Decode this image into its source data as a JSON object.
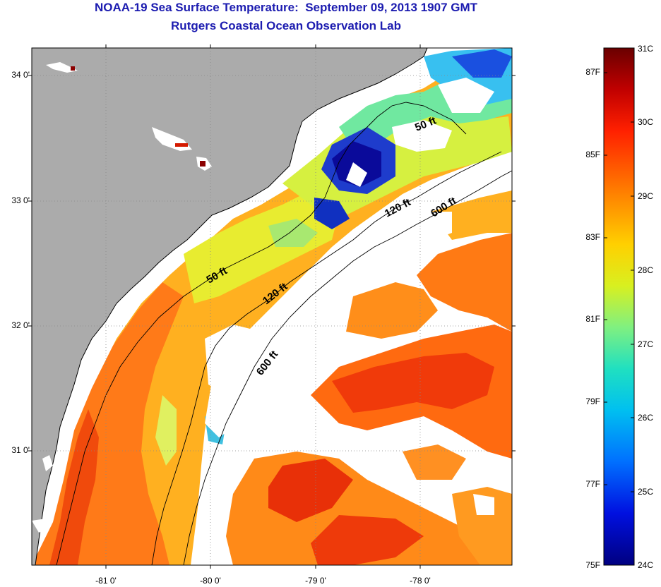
{
  "title": {
    "line1": "NOAA-19 Sea Surface Temperature:  September 09, 2013 1907 GMT",
    "line2": "Rutgers Coastal Ocean Observation Lab"
  },
  "map": {
    "lat_ticks": [
      "34 0'",
      "33 0'",
      "32 0'",
      "31 0'"
    ],
    "lon_ticks": [
      "-81 0'",
      "-80 0'",
      "-79 0'",
      "-78 0'"
    ],
    "isobath_labels": [
      "50 ft",
      "50 ft",
      "120 ft",
      "120 ft",
      "600 ft",
      "600 ft"
    ]
  },
  "colorbar": {
    "fahrenheit_labels": [
      "87F",
      "85F",
      "83F",
      "81F",
      "79F",
      "77F",
      "75F"
    ],
    "celsius_labels": [
      "31C",
      "30C",
      "29C",
      "28C",
      "27C",
      "26C",
      "25C",
      "24C"
    ],
    "colors": [
      "#8b0000",
      "#d40000",
      "#ff4400",
      "#ff9900",
      "#ffdd00",
      "#c8f030",
      "#50e0a0",
      "#00d0e0",
      "#0090ff",
      "#0030ff",
      "#00008b"
    ]
  },
  "colors": {
    "title": "#1c1cb0",
    "land": "#ababab",
    "no_data": "#ffffff"
  }
}
